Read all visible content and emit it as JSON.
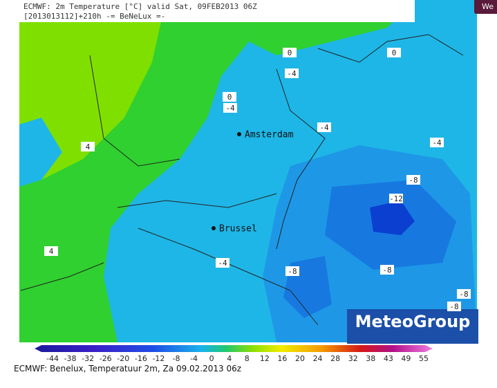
{
  "header": {
    "line1": "ECMWF: 2m Temperature [°C] valid Sat, 09FEB2013 06Z",
    "line2": "[2013013112]+210h -= BeNeLux =-"
  },
  "tab": "We",
  "cities": [
    "Amsterdam",
    "Brussel"
  ],
  "contour_labels": [
    0,
    0,
    -4,
    0,
    -4,
    -4,
    4,
    -4,
    -8,
    -12,
    4,
    -4,
    -8,
    -8,
    -8,
    -8
  ],
  "logo": "MeteoGroup",
  "colorbar_ticks": [
    -44,
    -38,
    -32,
    -26,
    -20,
    -16,
    -12,
    -8,
    -4,
    0,
    4,
    8,
    12,
    16,
    20,
    24,
    28,
    32,
    38,
    43,
    49,
    55
  ],
  "caption": "ECMWF: Benelux, Temperatuur 2m, Za 09.02.2013 06z"
}
